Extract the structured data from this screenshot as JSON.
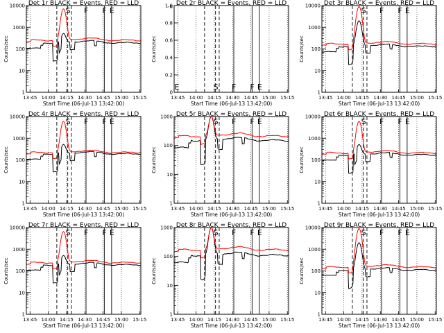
{
  "chart_data": [
    {
      "type": "line",
      "title": "Det 1r BLACK = Events, RED = LLD",
      "ylabel": "Counts/sec",
      "xlabel": "Start Time (06-Jul-13 13:42:00)",
      "y_ticks": [
        "1",
        "10",
        "100",
        "1000",
        "10000"
      ],
      "ylim": [
        1,
        10000
      ],
      "y_scale": "log",
      "x_ticks": [
        "13:45",
        "14:00",
        "14:15",
        "14:30",
        "14:45",
        "15:00",
        "15:15"
      ],
      "xlim_minutes": [
        0,
        94
      ],
      "series": [
        {
          "color": "#000000",
          "shape": "A",
          "base": 190,
          "peak": 500
        },
        {
          "color": "#ff0000",
          "shape": "B",
          "base": 250,
          "peak": 7000
        }
      ],
      "markers": [
        {
          "label": "S",
          "t": 34
        },
        {
          "label": "F",
          "t": 49
        },
        {
          "label": "F",
          "t": 64
        },
        {
          "label": "E",
          "t": 70
        }
      ]
    },
    {
      "type": "line",
      "title": "Det 2r BLACK = Events, RED = LLD",
      "ylabel": "Counts/sec",
      "xlabel": "Start Time (06-Jul-13 13:42:00)",
      "y_ticks": [
        "1.0",
        "0.8",
        "0.6",
        "0.4",
        "0.2",
        "0"
      ],
      "ylim": [
        0,
        1
      ],
      "y_scale": "linear",
      "y_exp": "-6",
      "x_ticks": [
        "13:45",
        "14:00",
        "14:15",
        "14:30",
        "14:45",
        "15:00",
        "15:15"
      ],
      "xlim_minutes": [
        0,
        94
      ],
      "series": [],
      "markers": [
        {
          "label": "E",
          "t": 2
        },
        {
          "label": "S",
          "t": 34
        },
        {
          "label": "F",
          "t": 49
        },
        {
          "label": "F",
          "t": 64
        },
        {
          "label": "E",
          "t": 70
        }
      ]
    },
    {
      "type": "line",
      "title": "Det 3r BLACK = Events, RED = LLD",
      "ylabel": "Counts/sec",
      "xlabel": "Start Time (06-Jul-13 13:42:00)",
      "y_ticks": [
        "1",
        "10",
        "100",
        "1000",
        "10000"
      ],
      "ylim": [
        1,
        10000
      ],
      "y_scale": "log",
      "x_ticks": [
        "13:45",
        "14:00",
        "14:15",
        "14:30",
        "14:45",
        "15:00",
        "15:15"
      ],
      "xlim_minutes": [
        0,
        94
      ],
      "series": [
        {
          "color": "#000000",
          "shape": "C",
          "base": 130,
          "peak": 2000
        },
        {
          "color": "#ff0000",
          "shape": "D",
          "base": 170,
          "peak": 9000
        }
      ],
      "markers": [
        {
          "label": "S",
          "t": 34
        },
        {
          "label": "F",
          "t": 49
        },
        {
          "label": "F",
          "t": 64
        },
        {
          "label": "E",
          "t": 70
        }
      ]
    },
    {
      "type": "line",
      "title": "Det 4r BLACK = Events, RED = LLD",
      "ylabel": "Counts/sec",
      "xlabel": "Start Time (06-Jul-13 13:42:00)",
      "y_ticks": [
        "1",
        "10",
        "100",
        "1000",
        "10000"
      ],
      "ylim": [
        1,
        10000
      ],
      "y_scale": "log",
      "x_ticks": [
        "13:45",
        "14:00",
        "14:15",
        "14:30",
        "14:45",
        "15:00",
        "15:15"
      ],
      "xlim_minutes": [
        0,
        94
      ],
      "series": [
        {
          "color": "#000000",
          "shape": "A",
          "base": 190,
          "peak": 500
        },
        {
          "color": "#ff0000",
          "shape": "B",
          "base": 220,
          "peak": 6000
        }
      ],
      "markers": [
        {
          "label": "S",
          "t": 34
        },
        {
          "label": "F",
          "t": 49
        },
        {
          "label": "F",
          "t": 64
        },
        {
          "label": "E",
          "t": 70
        }
      ]
    },
    {
      "type": "line",
      "title": "Det 5r BLACK = Events, RED = LLD",
      "ylabel": "Counts/sec",
      "xlabel": "Start Time (06-Jul-13 13:42:00)",
      "y_ticks": [
        "1",
        "10",
        "100",
        "1000"
      ],
      "ylim": [
        1,
        1000
      ],
      "y_scale": "log",
      "x_ticks": [
        "13:45",
        "14:00",
        "14:15",
        "14:30",
        "14:45",
        "15:00",
        "15:15"
      ],
      "xlim_minutes": [
        0,
        94
      ],
      "series": [
        {
          "color": "#000000",
          "shape": "C",
          "base": 150,
          "peak": 1000
        },
        {
          "color": "#ff0000",
          "shape": "D",
          "base": 210,
          "peak": 1000
        }
      ],
      "markers": [
        {
          "label": "S",
          "t": 34
        },
        {
          "label": "F",
          "t": 49
        },
        {
          "label": "F",
          "t": 64
        },
        {
          "label": "E",
          "t": 70
        }
      ]
    },
    {
      "type": "line",
      "title": "Det 6r BLACK = Events, RED = LLD",
      "ylabel": "Counts/sec",
      "xlabel": "Start Time (06-Jul-13 13:42:00)",
      "y_ticks": [
        "1",
        "10",
        "100",
        "1000",
        "10000"
      ],
      "ylim": [
        1,
        10000
      ],
      "y_scale": "log",
      "x_ticks": [
        "13:45",
        "14:00",
        "14:15",
        "14:30",
        "14:45",
        "15:00",
        "15:15"
      ],
      "xlim_minutes": [
        0,
        94
      ],
      "series": [
        {
          "color": "#000000",
          "shape": "A",
          "base": 170,
          "peak": 500
        },
        {
          "color": "#ff0000",
          "shape": "B",
          "base": 210,
          "peak": 6000
        }
      ],
      "markers": [
        {
          "label": "S",
          "t": 34
        },
        {
          "label": "F",
          "t": 49
        },
        {
          "label": "F",
          "t": 64
        },
        {
          "label": "E",
          "t": 70
        }
      ]
    },
    {
      "type": "line",
      "title": "Det 7r BLACK = Events, RED = LLD",
      "ylabel": "Counts/sec",
      "xlabel": "Start Time (06-Jul-13 13:42:00)",
      "y_ticks": [
        "1",
        "10",
        "100",
        "1000",
        "10000"
      ],
      "ylim": [
        1,
        10000
      ],
      "y_scale": "log",
      "x_ticks": [
        "13:45",
        "14:00",
        "14:15",
        "14:30",
        "14:45",
        "15:00",
        "15:15"
      ],
      "xlim_minutes": [
        0,
        94
      ],
      "series": [
        {
          "color": "#000000",
          "shape": "A",
          "base": 190,
          "peak": 500
        },
        {
          "color": "#ff0000",
          "shape": "B",
          "base": 240,
          "peak": 6500
        }
      ],
      "markers": [
        {
          "label": "S",
          "t": 34
        },
        {
          "label": "F",
          "t": 49
        },
        {
          "label": "F",
          "t": 64
        },
        {
          "label": "E",
          "t": 70
        }
      ]
    },
    {
      "type": "line",
      "title": "Det 8r BLACK = Events, RED = LLD",
      "ylabel": "Counts/sec",
      "xlabel": "Start Time (06-Jul-13 13:42:00)",
      "y_ticks": [
        "1",
        "10",
        "100",
        "1000"
      ],
      "ylim": [
        1,
        1000
      ],
      "y_scale": "log",
      "x_ticks": [
        "13:45",
        "14:00",
        "14:15",
        "14:30",
        "14:45",
        "15:00",
        "15:15"
      ],
      "xlim_minutes": [
        0,
        94
      ],
      "series": [
        {
          "color": "#000000",
          "shape": "C",
          "base": 110,
          "peak": 1000
        },
        {
          "color": "#ff0000",
          "shape": "D",
          "base": 170,
          "peak": 1000
        }
      ],
      "markers": [
        {
          "label": "S",
          "t": 34
        },
        {
          "label": "F",
          "t": 49
        },
        {
          "label": "F",
          "t": 64
        },
        {
          "label": "E",
          "t": 70
        }
      ]
    },
    {
      "type": "line",
      "title": "Det 9r BLACK = Events, RED = LLD",
      "ylabel": "Counts/sec",
      "xlabel": "Start Time (06-Jul-13 13:42:00)",
      "y_ticks": [
        "1",
        "10",
        "100",
        "1000",
        "10000"
      ],
      "ylim": [
        1,
        10000
      ],
      "y_scale": "log",
      "x_ticks": [
        "13:45",
        "14:00",
        "14:15",
        "14:30",
        "14:45",
        "15:00",
        "15:15"
      ],
      "xlim_minutes": [
        0,
        94
      ],
      "series": [
        {
          "color": "#000000",
          "shape": "C",
          "base": 110,
          "peak": 2000
        },
        {
          "color": "#ff0000",
          "shape": "D",
          "base": 150,
          "peak": 9000
        }
      ],
      "markers": [
        {
          "label": "S",
          "t": 34
        },
        {
          "label": "F",
          "t": 49
        },
        {
          "label": "F",
          "t": 64
        },
        {
          "label": "E",
          "t": 70
        }
      ]
    }
  ]
}
